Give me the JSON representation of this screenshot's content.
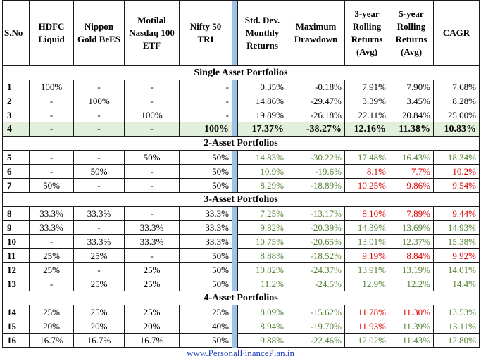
{
  "headers": [
    "S.No",
    "HDFC Liquid",
    "Nippon Gold BeES",
    "Motilal Nasdaq 100 ETF",
    "Nifty 50 TRI",
    "Std. Dev. Monthly Returns",
    "Maximum Drawdown",
    "3-year Rolling Returns (Avg)",
    "5-year Rolling Returns (Avg)",
    "CAGR"
  ],
  "groups": [
    {
      "title": "Single Asset Portfolios",
      "rows": [
        {
          "cells": [
            "1",
            "100%",
            "-",
            "-",
            "-",
            "0.35%",
            "-0.18%",
            "7.91%",
            "7.90%",
            "7.68%"
          ],
          "colors": [
            "black",
            "black",
            "black",
            "black",
            "black"
          ]
        },
        {
          "cells": [
            "2",
            "-",
            "100%",
            "-",
            "-",
            "14.86%",
            "-29.47%",
            "3.39%",
            "3.45%",
            "8.28%"
          ],
          "colors": [
            "black",
            "black",
            "black",
            "black",
            "black"
          ]
        },
        {
          "cells": [
            "3",
            "-",
            "-",
            "100%",
            "-",
            "19.89%",
            "-26.18%",
            "22.11%",
            "20.84%",
            "25.00%"
          ],
          "colors": [
            "black",
            "black",
            "black",
            "black",
            "black"
          ]
        },
        {
          "cells": [
            "4",
            "-",
            "-",
            "-",
            "100%",
            "17.37%",
            "-38.27%",
            "12.16%",
            "11.38%",
            "10.83%"
          ],
          "colors": [
            "black",
            "black",
            "black",
            "black",
            "black"
          ],
          "highlight": true
        }
      ]
    },
    {
      "title": "2-Asset Portfolios",
      "rows": [
        {
          "cells": [
            "5",
            "-",
            "-",
            "50%",
            "50%",
            "14.83%",
            "-30.22%",
            "17.48%",
            "16.43%",
            "18.34%"
          ],
          "colors": [
            "green",
            "green",
            "green",
            "green",
            "green"
          ]
        },
        {
          "cells": [
            "6",
            "-",
            "50%",
            "-",
            "50%",
            "10.9%",
            "-19.6%",
            "8.1%",
            "7.7%",
            "10.2%"
          ],
          "colors": [
            "green",
            "green",
            "red",
            "red",
            "red"
          ]
        },
        {
          "cells": [
            "7",
            "50%",
            "-",
            "-",
            "50%",
            "8.29%",
            "-18.89%",
            "10.25%",
            "9.86%",
            "9.54%"
          ],
          "colors": [
            "green",
            "green",
            "red",
            "red",
            "red"
          ]
        }
      ]
    },
    {
      "title": "3-Asset Portfolios",
      "rows": [
        {
          "cells": [
            "8",
            "33.3%",
            "33.3%",
            "-",
            "33.3%",
            "7.25%",
            "-13.17%",
            "8.10%",
            "7.89%",
            "9.44%"
          ],
          "colors": [
            "green",
            "green",
            "red",
            "red",
            "red"
          ]
        },
        {
          "cells": [
            "9",
            "33.3%",
            "-",
            "33.3%",
            "33.3%",
            "9.82%",
            "-20.39%",
            "14.39%",
            "13.69%",
            "14.93%"
          ],
          "colors": [
            "green",
            "green",
            "green",
            "green",
            "green"
          ]
        },
        {
          "cells": [
            "10",
            "-",
            "33.3%",
            "33.3%",
            "33.3%",
            "10.75%",
            "-20.65%",
            "13.01%",
            "12.37%",
            "15.38%"
          ],
          "colors": [
            "green",
            "green",
            "green",
            "green",
            "green"
          ]
        },
        {
          "cells": [
            "11",
            "25%",
            "25%",
            "-",
            "50%",
            "8.88%",
            "-18.52%",
            "9.19%",
            "8.84%",
            "9.92%"
          ],
          "colors": [
            "green",
            "green",
            "red",
            "red",
            "red"
          ]
        },
        {
          "cells": [
            "12",
            "25%",
            "-",
            "25%",
            "50%",
            "10.82%",
            "-24.37%",
            "13.91%",
            "13.19%",
            "14.01%"
          ],
          "colors": [
            "green",
            "green",
            "green",
            "green",
            "green"
          ]
        },
        {
          "cells": [
            "13",
            "-",
            "25%",
            "25%",
            "50%",
            "11.2%",
            "-24.5%",
            "12.9%",
            "12.2%",
            "14.4%"
          ],
          "colors": [
            "green",
            "green",
            "green",
            "green",
            "green"
          ]
        }
      ]
    },
    {
      "title": "4-Asset Portfolios",
      "rows": [
        {
          "cells": [
            "14",
            "25%",
            "25%",
            "25%",
            "25%",
            "8.09%",
            "-15.62%",
            "11.78%",
            "11.30%",
            "13.53%"
          ],
          "colors": [
            "green",
            "green",
            "red",
            "red",
            "green"
          ]
        },
        {
          "cells": [
            "15",
            "20%",
            "20%",
            "20%",
            "40%",
            "8.94%",
            "-19.70%",
            "11.93%",
            "11.39%",
            "13.11%"
          ],
          "colors": [
            "green",
            "green",
            "red",
            "green",
            "green"
          ]
        },
        {
          "cells": [
            "16",
            "16.7%",
            "16.7%",
            "16.7%",
            "50%",
            "9.88%",
            "-22.46%",
            "12.02%",
            "11.43%",
            "12.80%"
          ],
          "colors": [
            "green",
            "green",
            "green",
            "green",
            "green"
          ]
        }
      ]
    }
  ],
  "footer": "www.PersonalFinancePlan.in",
  "colors": {
    "green": "#548235",
    "red": "#e00000",
    "highlight": "#e2efda",
    "separator": "#9dc3e6",
    "link": "#1f3fbf"
  }
}
